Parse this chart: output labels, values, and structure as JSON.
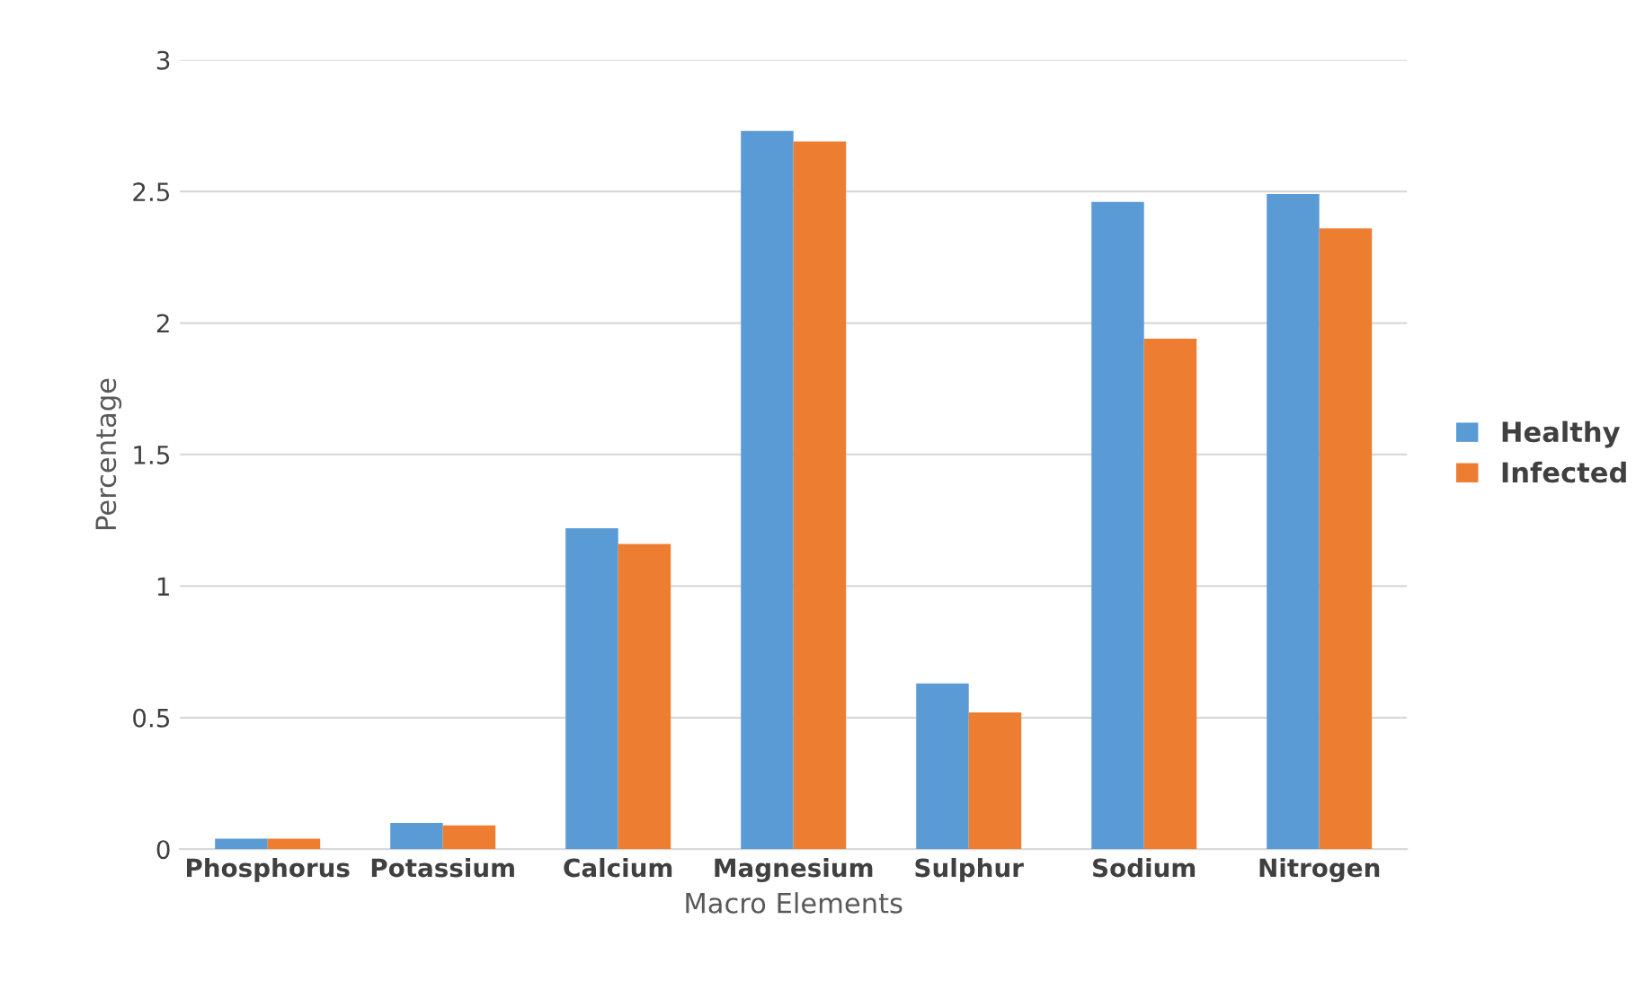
{
  "chart_data": {
    "type": "bar",
    "xlabel": "Macro Elements",
    "ylabel": "Percentage",
    "categories": [
      "Phosphorus",
      "Potassium",
      "Calcium",
      "Magnesium",
      "Sulphur",
      "Sodium",
      "Nitrogen"
    ],
    "series": [
      {
        "name": "Healthy",
        "color": "#5b9bd5",
        "values": [
          0.04,
          0.1,
          1.22,
          2.73,
          0.63,
          2.46,
          2.49
        ]
      },
      {
        "name": "Infected",
        "color": "#ed7d31",
        "values": [
          0.04,
          0.09,
          1.16,
          2.69,
          0.52,
          1.94,
          2.36
        ]
      }
    ],
    "ylim": [
      0,
      3
    ],
    "yticks": [
      0,
      0.5,
      1,
      1.5,
      2,
      2.5,
      3
    ],
    "grid": "y",
    "legend": "right"
  }
}
